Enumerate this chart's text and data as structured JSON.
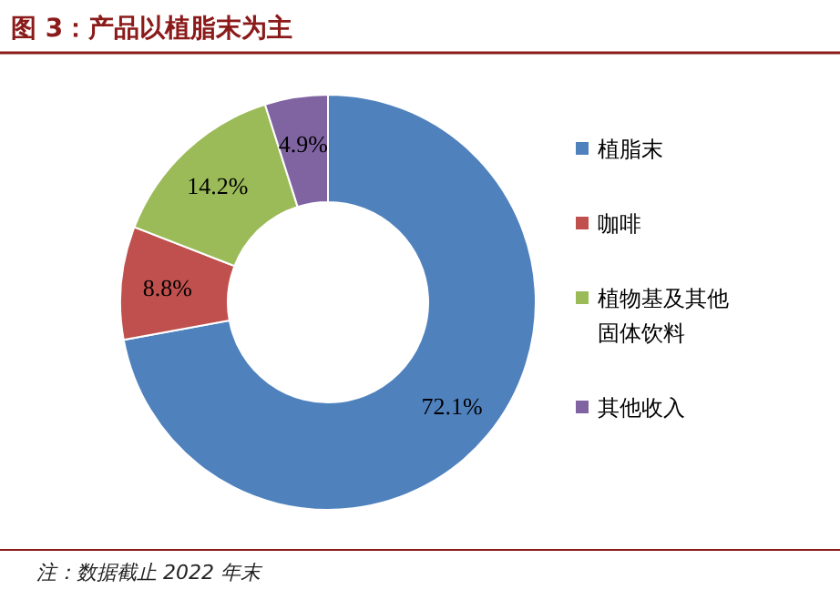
{
  "chart_data": {
    "type": "donut",
    "title": "图 3：产品以植脂末为主",
    "categories": [
      "植脂末",
      "咖啡",
      "植物基及其他固体饮料",
      "其他收入"
    ],
    "values": [
      72.1,
      8.8,
      14.2,
      4.9
    ],
    "colors": [
      "#4f81bd",
      "#c0504d",
      "#9bbb59",
      "#8064a2"
    ],
    "value_labels": [
      "72.1%",
      "8.8%",
      "14.2%",
      "4.9%"
    ],
    "legend": "right",
    "annotations": [
      "注：数据截止 2022 年末"
    ]
  }
}
